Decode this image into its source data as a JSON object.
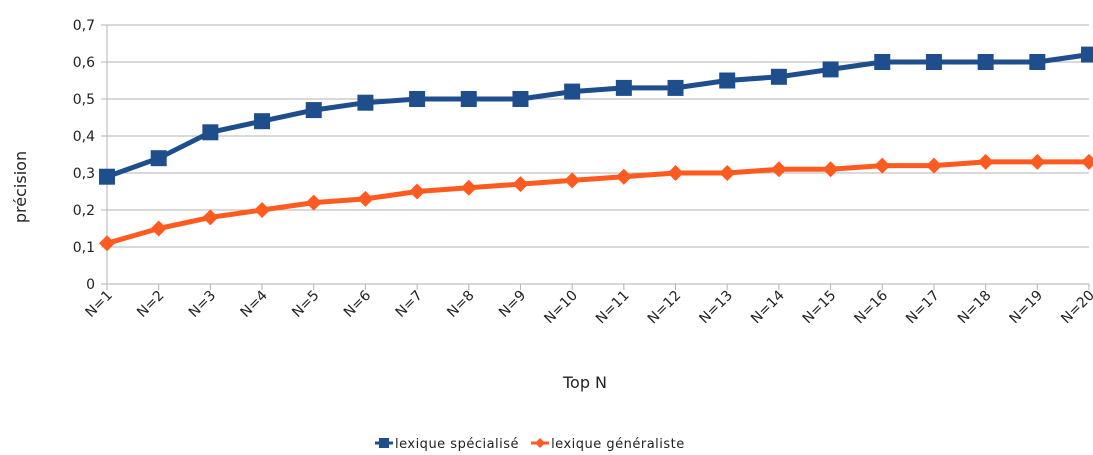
{
  "chart_data": {
    "type": "line",
    "xlabel": "Top N",
    "ylabel": "précision",
    "categories": [
      "N=1",
      "N=2",
      "N=3",
      "N=4",
      "N=5",
      "N=6",
      "N=7",
      "N=8",
      "N=9",
      "N=10",
      "N=11",
      "N=12",
      "N=13",
      "N=14",
      "N=15",
      "N=16",
      "N=17",
      "N=18",
      "N=19",
      "N=20"
    ],
    "ylim": [
      0,
      0.7
    ],
    "yticks": [
      "0",
      "0,1",
      "0,2",
      "0,3",
      "0,4",
      "0,5",
      "0,6",
      "0,7"
    ],
    "grid": true,
    "legend_position": "bottom",
    "series": [
      {
        "name": "lexique spécialisé",
        "color": "#1f4e8c",
        "marker": "square",
        "values": [
          0.29,
          0.34,
          0.41,
          0.44,
          0.47,
          0.49,
          0.5,
          0.5,
          0.5,
          0.52,
          0.53,
          0.53,
          0.55,
          0.56,
          0.58,
          0.6,
          0.6,
          0.6,
          0.6,
          0.62
        ]
      },
      {
        "name": "lexique généraliste",
        "color": "#ff5a1f",
        "marker": "diamond",
        "values": [
          0.11,
          0.15,
          0.18,
          0.2,
          0.22,
          0.23,
          0.25,
          0.26,
          0.27,
          0.28,
          0.29,
          0.3,
          0.3,
          0.31,
          0.31,
          0.32,
          0.32,
          0.33,
          0.33,
          0.33
        ]
      }
    ]
  }
}
